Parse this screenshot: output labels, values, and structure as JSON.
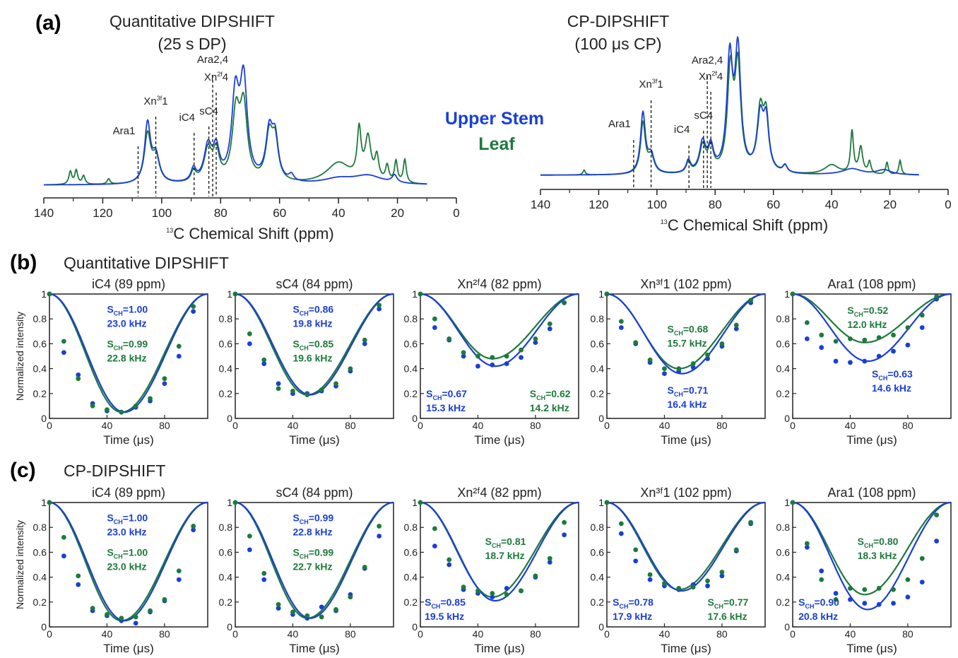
{
  "colors": {
    "upper_stem": "#1a3fd6",
    "leaf": "#1e7a3c",
    "text": "#222222"
  },
  "panel_a": {
    "label": "(a)",
    "legend": {
      "upper_stem": "Upper Stem",
      "leaf": "Leaf"
    },
    "spectra": [
      {
        "title_line1": "Quantitative DIPSHIFT",
        "title_line2": "(25 s DP)",
        "xlabel_sup": "13",
        "xlabel": "C Chemical Shift (ppm)",
        "xlim": [
          140,
          0
        ],
        "xticks": [
          "140",
          "120",
          "100",
          "80",
          "60",
          "40",
          "20",
          "0"
        ],
        "peak_labels": [
          {
            "text": "Ara1",
            "ppm": 108
          },
          {
            "text": "Xn",
            "sup": "3f",
            "tail": "1",
            "ppm": 102
          },
          {
            "text": "iC4",
            "ppm": 89
          },
          {
            "text": "sC4",
            "ppm": 84
          },
          {
            "text": "Ara2,4",
            "ppm": 82.7
          },
          {
            "text": "Xn",
            "sup": "2f",
            "tail": "4",
            "ppm": 81.5
          }
        ],
        "upper_stem_peaks": [
          {
            "c": 104.8,
            "h": 0.55,
            "w": 1.2
          },
          {
            "c": 102,
            "h": 0.25,
            "w": 1.5
          },
          {
            "c": 89.2,
            "h": 0.12,
            "w": 1.0
          },
          {
            "c": 84.3,
            "h": 0.33,
            "w": 1.6
          },
          {
            "c": 81.5,
            "h": 0.28,
            "w": 1.3
          },
          {
            "c": 75,
            "h": 0.78,
            "w": 1.5
          },
          {
            "c": 72.2,
            "h": 0.92,
            "w": 1.5
          },
          {
            "c": 63.5,
            "h": 0.45,
            "w": 1.4
          },
          {
            "c": 61.5,
            "h": 0.38,
            "w": 1.3
          },
          {
            "c": 56,
            "h": 0.06,
            "w": 1.0
          },
          {
            "c": 40,
            "h": 0.05,
            "w": 6.0
          },
          {
            "c": 30,
            "h": 0.08,
            "w": 6.0
          },
          {
            "c": 21,
            "h": 0.07,
            "w": 1.0
          }
        ],
        "leaf_peaks": [
          {
            "c": 131,
            "h": 0.12,
            "w": 0.6
          },
          {
            "c": 129,
            "h": 0.13,
            "w": 0.6
          },
          {
            "c": 126.5,
            "h": 0.08,
            "w": 0.6
          },
          {
            "c": 118,
            "h": 0.05,
            "w": 0.6
          },
          {
            "c": 104.8,
            "h": 0.45,
            "w": 1.3
          },
          {
            "c": 102,
            "h": 0.24,
            "w": 1.5
          },
          {
            "c": 89.2,
            "h": 0.1,
            "w": 1.0
          },
          {
            "c": 84.3,
            "h": 0.3,
            "w": 1.6
          },
          {
            "c": 81.5,
            "h": 0.26,
            "w": 1.3
          },
          {
            "c": 74.8,
            "h": 0.62,
            "w": 1.5
          },
          {
            "c": 72.2,
            "h": 0.68,
            "w": 1.5
          },
          {
            "c": 63.5,
            "h": 0.42,
            "w": 1.4
          },
          {
            "c": 61.5,
            "h": 0.36,
            "w": 1.3
          },
          {
            "c": 40,
            "h": 0.2,
            "w": 5.0
          },
          {
            "c": 33,
            "h": 0.45,
            "w": 0.8
          },
          {
            "c": 30,
            "h": 0.4,
            "w": 1.2
          },
          {
            "c": 27,
            "h": 0.22,
            "w": 0.8
          },
          {
            "c": 23.5,
            "h": 0.15,
            "w": 0.7
          },
          {
            "c": 20.5,
            "h": 0.2,
            "w": 0.6
          },
          {
            "c": 17.5,
            "h": 0.22,
            "w": 0.6
          }
        ]
      },
      {
        "title_line1": "CP-DIPSHIFT",
        "title_line2": "(100 μs CP)",
        "xlabel_sup": "13",
        "xlabel": "C Chemical Shift (ppm)",
        "xlim": [
          140,
          0
        ],
        "xticks": [
          "140",
          "120",
          "100",
          "80",
          "60",
          "40",
          "20",
          "0"
        ],
        "peak_labels": [
          {
            "text": "Ara1",
            "ppm": 108
          },
          {
            "text": "Xn",
            "sup": "3f",
            "tail": "1",
            "ppm": 102
          },
          {
            "text": "iC4",
            "ppm": 89
          },
          {
            "text": "sC4",
            "ppm": 84
          },
          {
            "text": "Ara2,4",
            "ppm": 82.7
          },
          {
            "text": "Xn",
            "sup": "2f",
            "tail": "4",
            "ppm": 81.5
          }
        ],
        "upper_stem_peaks": [
          {
            "c": 104.8,
            "h": 0.5,
            "w": 1.0
          },
          {
            "c": 102,
            "h": 0.15,
            "w": 1.3
          },
          {
            "c": 89.2,
            "h": 0.1,
            "w": 0.9
          },
          {
            "c": 84.3,
            "h": 0.25,
            "w": 1.3
          },
          {
            "c": 81.5,
            "h": 0.2,
            "w": 1.1
          },
          {
            "c": 75,
            "h": 0.92,
            "w": 1.2
          },
          {
            "c": 72.2,
            "h": 0.98,
            "w": 1.2
          },
          {
            "c": 64.5,
            "h": 0.45,
            "w": 1.3
          },
          {
            "c": 62.5,
            "h": 0.4,
            "w": 1.1
          },
          {
            "c": 56,
            "h": 0.06,
            "w": 0.9
          },
          {
            "c": 33,
            "h": 0.05,
            "w": 4.0
          },
          {
            "c": 22,
            "h": 0.04,
            "w": 3.0
          }
        ],
        "leaf_peaks": [
          {
            "c": 125,
            "h": 0.04,
            "w": 0.5
          },
          {
            "c": 104.8,
            "h": 0.42,
            "w": 1.0
          },
          {
            "c": 102,
            "h": 0.14,
            "w": 1.3
          },
          {
            "c": 89.2,
            "h": 0.09,
            "w": 0.9
          },
          {
            "c": 84.3,
            "h": 0.22,
            "w": 1.3
          },
          {
            "c": 81.5,
            "h": 0.19,
            "w": 1.1
          },
          {
            "c": 74.8,
            "h": 0.82,
            "w": 1.2
          },
          {
            "c": 72.2,
            "h": 0.85,
            "w": 1.2
          },
          {
            "c": 64.5,
            "h": 0.5,
            "w": 1.3
          },
          {
            "c": 62.5,
            "h": 0.43,
            "w": 1.1
          },
          {
            "c": 56,
            "h": 0.06,
            "w": 0.9
          },
          {
            "c": 40,
            "h": 0.08,
            "w": 3.0
          },
          {
            "c": 33,
            "h": 0.35,
            "w": 0.6
          },
          {
            "c": 30,
            "h": 0.22,
            "w": 0.8
          },
          {
            "c": 27,
            "h": 0.1,
            "w": 0.6
          },
          {
            "c": 21,
            "h": 0.1,
            "w": 0.5
          },
          {
            "c": 16.5,
            "h": 0.12,
            "w": 0.5
          }
        ]
      }
    ]
  },
  "panel_b": {
    "label": "(b)",
    "title": "Quantitative DIPSHIFT"
  },
  "panel_c": {
    "label": "(c)",
    "title": "CP-DIPSHIFT"
  },
  "chart_data": {
    "type": "scatter",
    "description_axes": "DIPSHIFT dephasing curves",
    "xlabel": "Time (μs)",
    "ylabel": "Normalized intensity",
    "xlim": [
      0,
      110
    ],
    "ylim": [
      0,
      1
    ],
    "xticks": [
      "0",
      "40",
      "80"
    ],
    "yticks": [
      "0",
      "0.2",
      "0.4",
      "0.6",
      "0.8",
      "1"
    ],
    "x": [
      0,
      10,
      20,
      30,
      40,
      50,
      60,
      70,
      80,
      90,
      100
    ],
    "panels": [
      {
        "row": "b",
        "title": "iC4 (89 ppm)",
        "show_ylabel": true,
        "blue": {
          "values": [
            1,
            0.53,
            0.35,
            0.12,
            0.06,
            0.05,
            0.09,
            0.14,
            0.28,
            0.5,
            0.86
          ],
          "fit_min": 0.05,
          "s_ch": "S",
          "s_sub": "CH",
          "s_val": "=1.00",
          "coupling": "23.0 kHz"
        },
        "green": {
          "values": [
            1,
            0.62,
            0.32,
            0.1,
            0.07,
            0.05,
            0.1,
            0.16,
            0.32,
            0.58,
            0.9
          ],
          "fit_min": 0.05,
          "s_ch": "S",
          "s_sub": "CH",
          "s_val": "=0.99",
          "coupling": "22.8 kHz"
        },
        "ann_positions": {
          "blue": [
            40,
            0.85
          ],
          "green": [
            40,
            0.57
          ]
        }
      },
      {
        "row": "b",
        "title": "sC4 (84 ppm)",
        "show_ylabel": false,
        "blue": {
          "values": [
            1,
            0.6,
            0.44,
            0.28,
            0.2,
            0.2,
            0.22,
            0.26,
            0.38,
            0.6,
            0.88
          ],
          "fit_min": 0.19,
          "s_ch": "S",
          "s_sub": "CH",
          "s_val": "=0.86",
          "coupling": "19.8 kHz"
        },
        "green": {
          "values": [
            1,
            0.68,
            0.47,
            0.24,
            0.22,
            0.19,
            0.23,
            0.28,
            0.4,
            0.63,
            0.91
          ],
          "fit_min": 0.19,
          "s_ch": "S",
          "s_sub": "CH",
          "s_val": "=0.85",
          "coupling": "19.6 kHz"
        },
        "ann_positions": {
          "blue": [
            40,
            0.85
          ],
          "green": [
            40,
            0.57
          ]
        }
      },
      {
        "row": "b",
        "title": "Xn²ᶠ4 (82 ppm)",
        "show_ylabel": false,
        "blue": {
          "values": [
            1,
            0.73,
            0.63,
            0.5,
            0.42,
            0.43,
            0.44,
            0.49,
            0.61,
            0.72,
            0.93
          ],
          "fit_min": 0.42,
          "s_ch": "S",
          "s_sub": "CH",
          "s_val": "=0.67",
          "coupling": "15.3 kHz"
        },
        "green": {
          "values": [
            1,
            0.8,
            0.64,
            0.53,
            0.5,
            0.49,
            0.5,
            0.55,
            0.64,
            0.76,
            0.93
          ],
          "fit_min": 0.48,
          "s_ch": "S",
          "s_sub": "CH",
          "s_val": "=0.62",
          "coupling": "14.2 kHz"
        },
        "ann_positions": {
          "blue": [
            4,
            0.17
          ],
          "green": [
            76,
            0.17
          ]
        }
      },
      {
        "row": "b",
        "title": "Xn³ᶠ1 (102 ppm)",
        "show_ylabel": false,
        "blue": {
          "values": [
            1,
            0.73,
            0.6,
            0.45,
            0.36,
            0.38,
            0.41,
            0.48,
            0.58,
            0.72,
            0.93
          ],
          "fit_min": 0.36,
          "s_ch": "S",
          "s_sub": "CH",
          "s_val": "=0.71",
          "coupling": "16.4 kHz"
        },
        "green": {
          "values": [
            1,
            0.78,
            0.61,
            0.47,
            0.4,
            0.4,
            0.44,
            0.51,
            0.6,
            0.75,
            0.95
          ],
          "fit_min": 0.4,
          "s_ch": "S",
          "s_sub": "CH",
          "s_val": "=0.68",
          "coupling": "15.7 kHz"
        },
        "ann_positions": {
          "blue": [
            42,
            0.2
          ],
          "green": [
            42,
            0.69
          ]
        }
      },
      {
        "row": "b",
        "title": "Ara1 (108 ppm)",
        "show_ylabel": false,
        "blue": {
          "values": [
            1,
            0.64,
            0.57,
            0.46,
            0.45,
            0.46,
            0.5,
            0.54,
            0.59,
            0.73,
            0.96
          ],
          "fit_min": 0.46,
          "s_ch": "S",
          "s_sub": "CH",
          "s_val": "=0.63",
          "coupling": "14.6 kHz"
        },
        "green": {
          "values": [
            1,
            0.77,
            0.67,
            0.62,
            0.64,
            0.63,
            0.65,
            0.67,
            0.73,
            0.83,
            0.98
          ],
          "fit_min": 0.61,
          "s_ch": "S",
          "s_sub": "CH",
          "s_val": "=0.52",
          "coupling": "12.0 kHz"
        },
        "ann_positions": {
          "blue": [
            55,
            0.33
          ],
          "green": [
            38,
            0.84
          ]
        }
      },
      {
        "row": "c",
        "title": "iC4 (89 ppm)",
        "show_ylabel": true,
        "blue": {
          "values": [
            1,
            0.57,
            0.34,
            0.13,
            0.09,
            0.05,
            0.03,
            0.12,
            0.21,
            0.38,
            0.78
          ],
          "fit_min": 0.05,
          "s_ch": "S",
          "s_sub": "CH",
          "s_val": "=1.00",
          "coupling": "23.0 kHz"
        },
        "green": {
          "values": [
            1,
            0.72,
            0.41,
            0.15,
            0.1,
            0.07,
            0.08,
            0.13,
            0.22,
            0.45,
            0.81
          ],
          "fit_min": 0.05,
          "s_ch": "S",
          "s_sub": "CH",
          "s_val": "=1.00",
          "coupling": "23.0 kHz"
        },
        "ann_positions": {
          "blue": [
            40,
            0.85
          ],
          "green": [
            40,
            0.57
          ]
        }
      },
      {
        "row": "c",
        "title": "sC4 (84 ppm)",
        "show_ylabel": false,
        "blue": {
          "values": [
            1,
            0.62,
            0.38,
            0.15,
            0.1,
            0.07,
            0.16,
            0.13,
            0.26,
            0.47,
            0.73
          ],
          "fit_min": 0.07,
          "s_ch": "S",
          "s_sub": "CH",
          "s_val": "=0.99",
          "coupling": "22.8 kHz"
        },
        "green": {
          "values": [
            1,
            0.73,
            0.43,
            0.18,
            0.12,
            0.09,
            0.08,
            0.14,
            0.24,
            0.48,
            0.81
          ],
          "fit_min": 0.07,
          "s_ch": "S",
          "s_sub": "CH",
          "s_val": "=0.99",
          "coupling": "22.7 kHz"
        },
        "ann_positions": {
          "blue": [
            40,
            0.85
          ],
          "green": [
            40,
            0.57
          ]
        }
      },
      {
        "row": "c",
        "title": "Xn²ᶠ4 (82 ppm)",
        "show_ylabel": false,
        "blue": {
          "values": [
            1,
            0.65,
            0.5,
            0.3,
            0.27,
            0.24,
            0.31,
            0.29,
            0.4,
            0.52,
            0.74
          ],
          "fit_min": 0.21,
          "s_ch": "S",
          "s_sub": "CH",
          "s_val": "=0.85",
          "coupling": "19.5 kHz"
        },
        "green": {
          "values": [
            1,
            0.79,
            0.54,
            0.32,
            0.29,
            0.27,
            0.26,
            0.29,
            0.41,
            0.55,
            0.84
          ],
          "fit_min": 0.24,
          "s_ch": "S",
          "s_sub": "CH",
          "s_val": "=0.81",
          "coupling": "18.7 kHz"
        },
        "ann_positions": {
          "blue": [
            3,
            0.17
          ],
          "green": [
            45,
            0.66
          ]
        }
      },
      {
        "row": "c",
        "title": "Xn³ᶠ1 (102 ppm)",
        "show_ylabel": false,
        "blue": {
          "values": [
            1,
            0.75,
            0.53,
            0.38,
            0.33,
            0.3,
            0.34,
            0.33,
            0.41,
            0.61,
            0.83
          ],
          "fit_min": 0.29,
          "s_ch": "S",
          "s_sub": "CH",
          "s_val": "=0.78",
          "coupling": "17.9 kHz"
        },
        "green": {
          "values": [
            1,
            0.83,
            0.62,
            0.42,
            0.35,
            0.31,
            0.32,
            0.37,
            0.44,
            0.62,
            0.84
          ],
          "fit_min": 0.3,
          "s_ch": "S",
          "s_sub": "CH",
          "s_val": "=0.77",
          "coupling": "17.6 kHz"
        },
        "ann_positions": {
          "blue": [
            4,
            0.17
          ],
          "green": [
            70,
            0.17
          ]
        }
      },
      {
        "row": "c",
        "title": "Ara1 (108 ppm)",
        "show_ylabel": false,
        "blue": {
          "values": [
            1,
            0.64,
            0.45,
            0.27,
            0.22,
            0.19,
            0.18,
            0.19,
            0.24,
            0.36,
            0.69
          ],
          "fit_min": 0.14,
          "s_ch": "S",
          "s_sub": "CH",
          "s_val": "=0.90",
          "coupling": "20.8 kHz"
        },
        "green": {
          "values": [
            1,
            0.67,
            0.38,
            0.22,
            0.31,
            0.3,
            0.31,
            0.3,
            0.38,
            0.55,
            0.9
          ],
          "fit_min": 0.26,
          "s_ch": "S",
          "s_sub": "CH",
          "s_val": "=0.80",
          "coupling": "18.3 kHz"
        },
        "ann_positions": {
          "blue": [
            4,
            0.17
          ],
          "green": [
            45,
            0.66
          ]
        }
      }
    ]
  }
}
